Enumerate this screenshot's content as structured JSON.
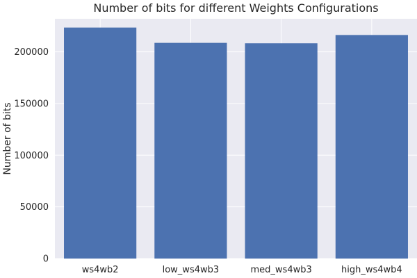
{
  "chart_data": {
    "type": "bar",
    "title": "Number of bits for different Weights Configurations",
    "xlabel": "",
    "ylabel": "Number of bits",
    "categories": [
      "ws4wb2",
      "low_ws4wb3",
      "med_ws4wb3",
      "high_ws4wb4"
    ],
    "values": [
      223500,
      208700,
      208300,
      216300
    ],
    "ylim": [
      0,
      232000
    ],
    "yticks": [
      0,
      50000,
      100000,
      150000,
      200000
    ],
    "ytick_labels": [
      "0",
      "50000",
      "100000",
      "150000",
      "200000"
    ],
    "grid": true,
    "legend": "none",
    "colors": {
      "bar": "#4C72B0",
      "plot_background": "#EAEAF2",
      "grid": "#FFFFFF",
      "text": "#262626"
    }
  }
}
